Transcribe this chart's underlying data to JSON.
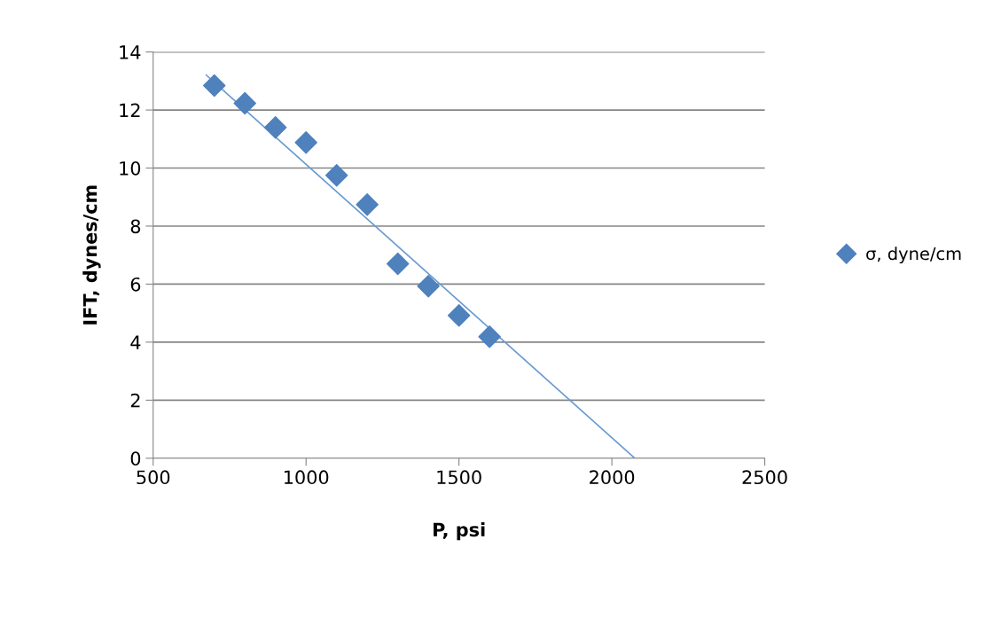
{
  "chart_data": {
    "type": "scatter",
    "xlabel": "P, psi",
    "ylabel": "IFT, dynes/cm",
    "xlim": [
      500,
      2500
    ],
    "xticks": [
      500,
      1000,
      1500,
      2000,
      2500
    ],
    "ylim": [
      0,
      14
    ],
    "yticks": [
      0,
      2,
      4,
      6,
      8,
      10,
      12,
      14
    ],
    "grid": "y",
    "legend": "right",
    "marker": "diamond",
    "series": [
      {
        "name": "σ, dyne/cm",
        "color": "#4f81bd",
        "x": [
          700,
          800,
          900,
          1000,
          1100,
          1200,
          1300,
          1400,
          1500,
          1600
        ],
        "values": [
          12.84,
          12.23,
          11.4,
          10.88,
          9.75,
          8.74,
          6.7,
          5.93,
          4.92,
          4.19
        ]
      },
      {
        "type": "line",
        "color": "#6a9bd1",
        "marker": "none",
        "line_style": "solid",
        "x": [
          674,
          2075
        ],
        "values": [
          13.2,
          0
        ]
      }
    ]
  }
}
